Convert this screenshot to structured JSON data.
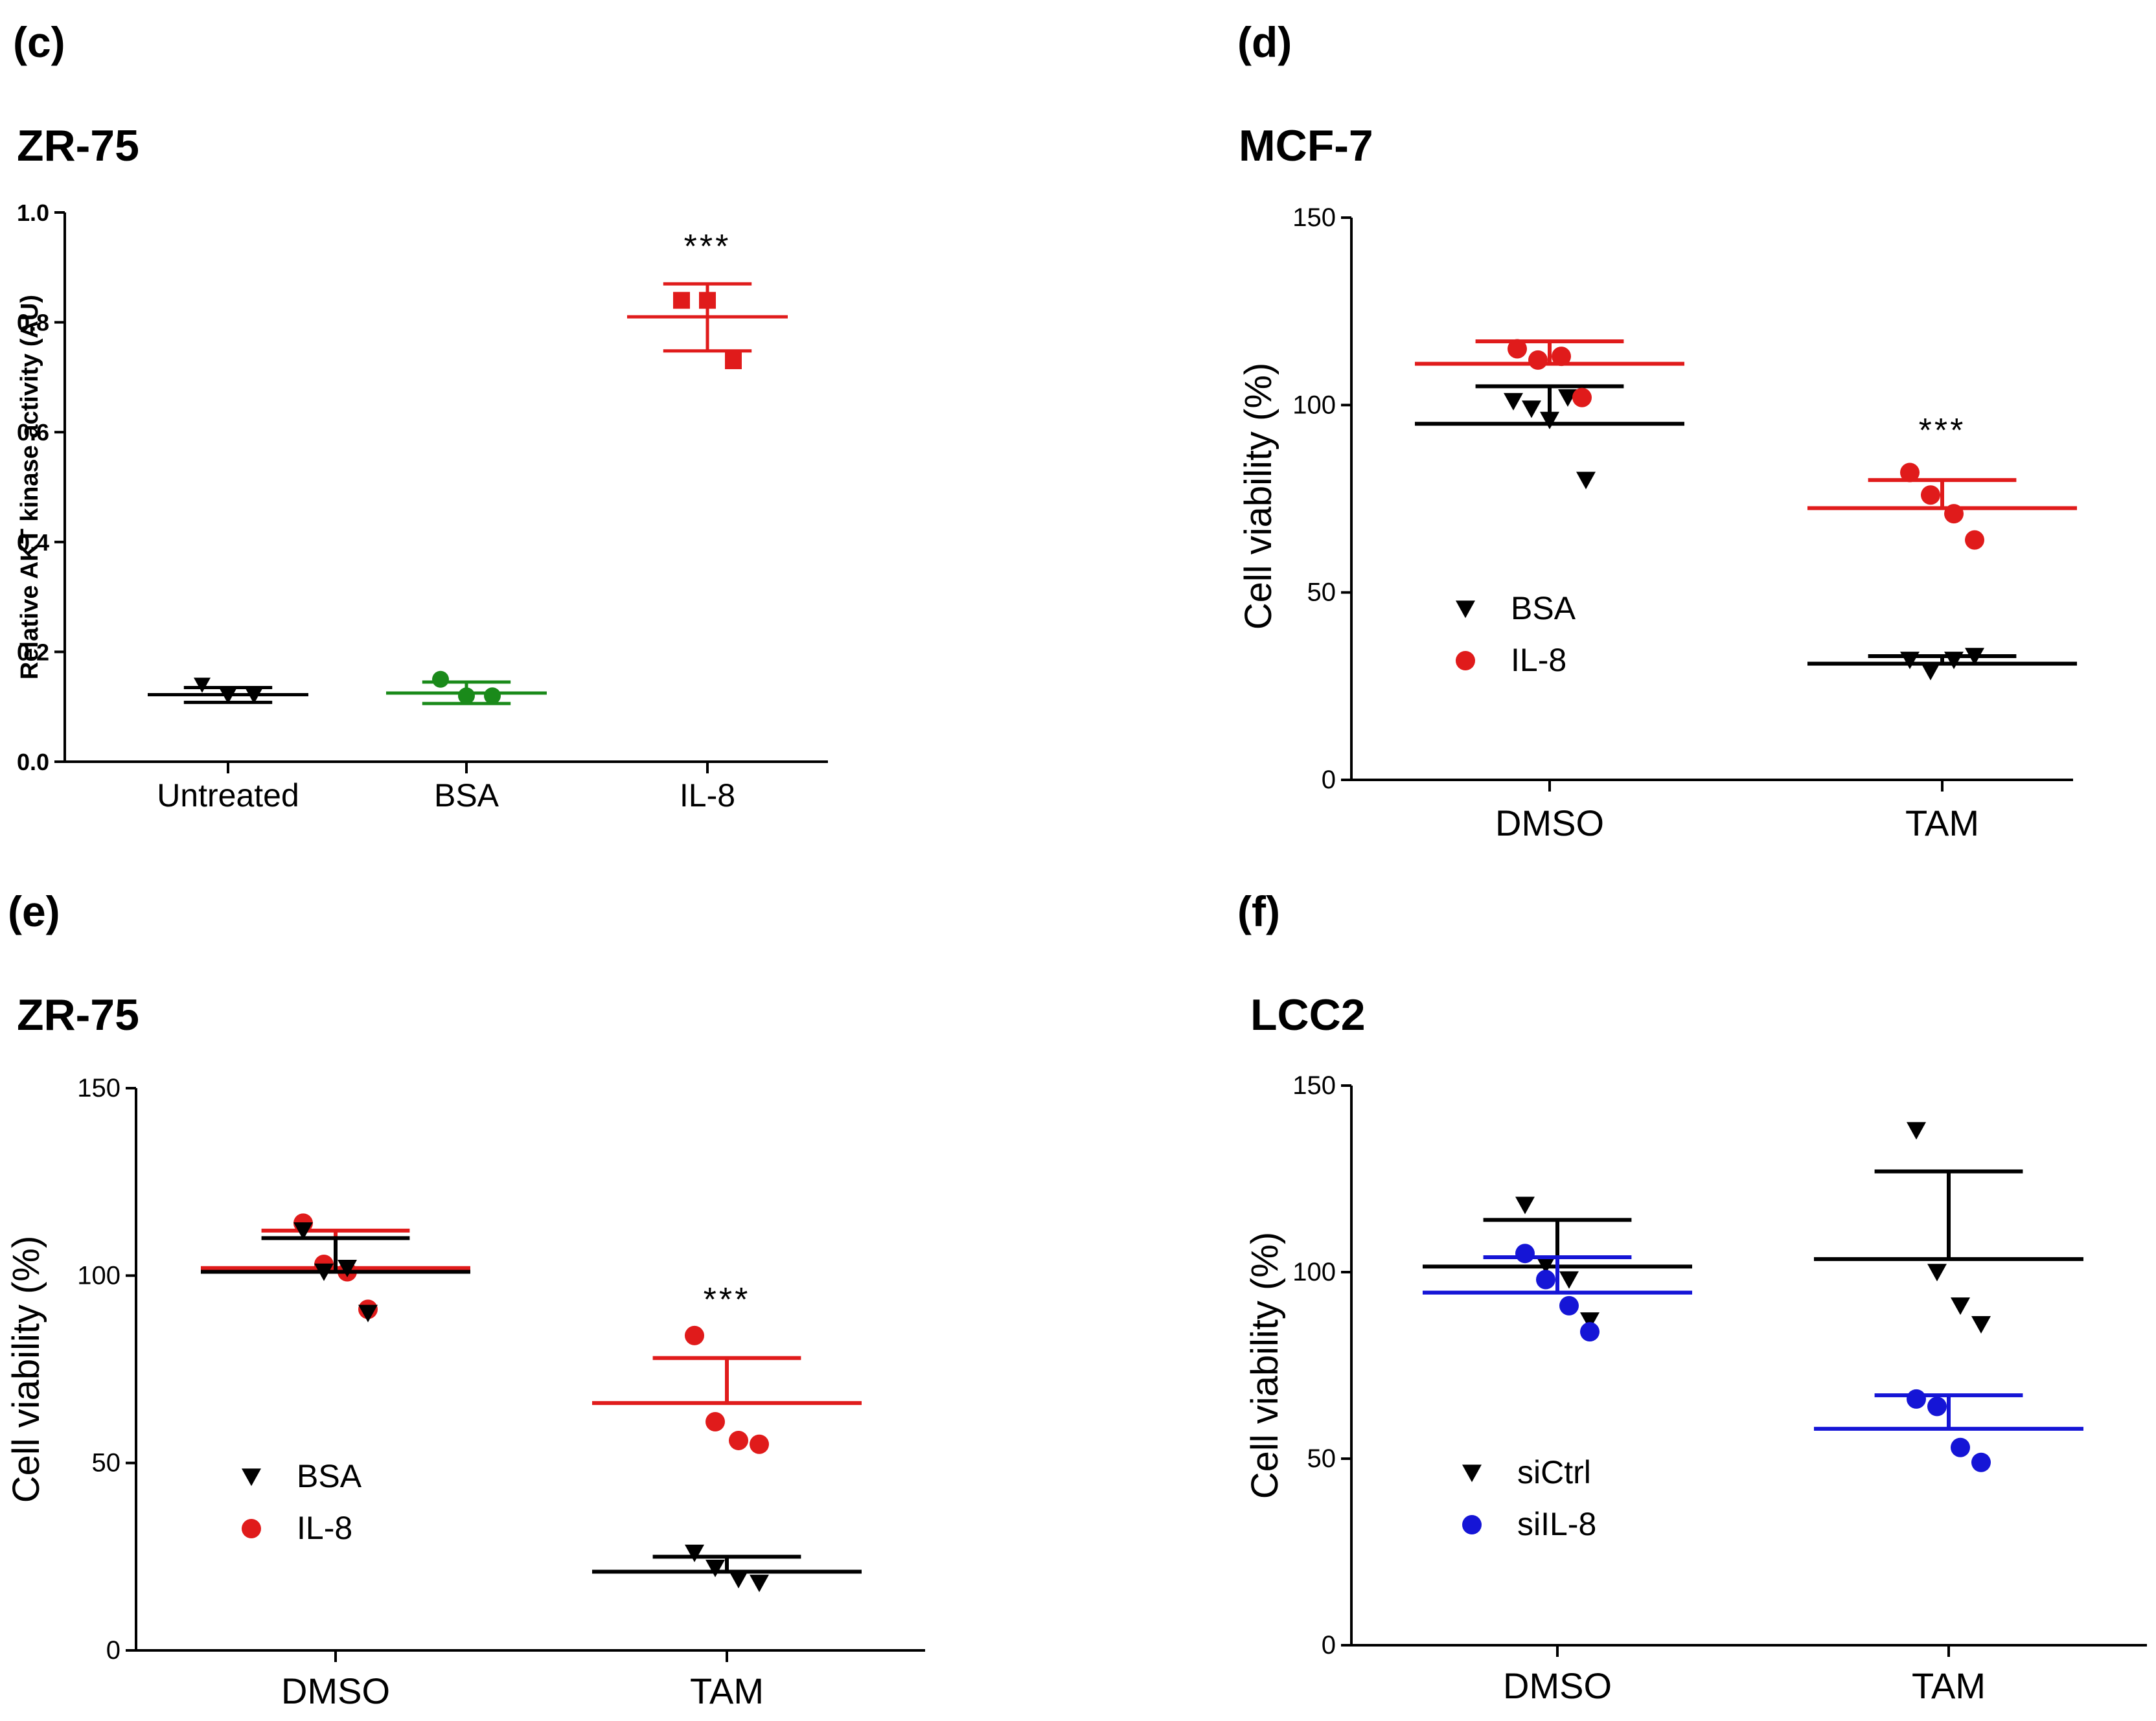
{
  "chart_data": [
    {
      "id": "c",
      "panel_label": "(c)",
      "title": "ZR-75",
      "type": "scatter",
      "ylabel": "Relative AKT kinase activity (AU)",
      "ylim": [
        0,
        1.0
      ],
      "yticks": [
        0.0,
        0.2,
        0.4,
        0.6,
        0.8,
        1.0
      ],
      "ytick_labels": [
        "0.0",
        "0.2",
        "0.4",
        "0.6",
        "0.8",
        "1.0"
      ],
      "categories": [
        "Untreated",
        "BSA",
        "IL-8"
      ],
      "annotation": "***",
      "annotation_category": "IL-8",
      "series": [
        {
          "name": "Untreated",
          "color": "#000000",
          "marker": "triangle-down",
          "category": "Untreated",
          "points": [
            0.14,
            0.12,
            0.12
          ],
          "mean": 0.122,
          "upper": 0.135,
          "lower": 0.108
        },
        {
          "name": "BSA",
          "color": "#1a8a1a",
          "marker": "circle",
          "category": "BSA",
          "points": [
            0.15,
            0.12,
            0.12
          ],
          "mean": 0.125,
          "upper": 0.145,
          "lower": 0.106
        },
        {
          "name": "IL-8",
          "color": "#e01b1b",
          "marker": "square",
          "category": "IL-8",
          "points": [
            0.84,
            0.84,
            0.73
          ],
          "mean": 0.81,
          "upper": 0.87,
          "lower": 0.748
        }
      ]
    },
    {
      "id": "d",
      "panel_label": "(d)",
      "title": "MCF-7",
      "type": "scatter",
      "ylabel": "Cell viability (%)",
      "ylim": [
        0,
        150
      ],
      "yticks": [
        0,
        50,
        100,
        150
      ],
      "ytick_labels": [
        "0",
        "50",
        "100",
        "150"
      ],
      "categories": [
        "DMSO",
        "TAM"
      ],
      "annotation": "***",
      "annotation_category": "TAM",
      "legend": [
        {
          "label": "BSA",
          "marker": "triangle-down",
          "color": "#000000"
        },
        {
          "label": "IL-8",
          "marker": "circle",
          "color": "#e01b1b"
        }
      ],
      "series": [
        {
          "name": "BSA",
          "color": "#000000",
          "marker": "triangle-down",
          "category": "DMSO",
          "points": [
            101,
            99,
            96,
            102,
            80
          ],
          "mean": 95,
          "upper": 105
        },
        {
          "name": "IL-8",
          "color": "#e01b1b",
          "marker": "circle",
          "category": "DMSO",
          "points": [
            115,
            112,
            113,
            102
          ],
          "mean": 111,
          "upper": 117
        },
        {
          "name": "BSA",
          "color": "#000000",
          "marker": "triangle-down",
          "category": "TAM",
          "points": [
            32,
            29,
            32,
            33
          ],
          "mean": 31,
          "upper": 33
        },
        {
          "name": "IL-8",
          "color": "#e01b1b",
          "marker": "circle",
          "category": "TAM",
          "points": [
            82,
            76,
            71,
            64
          ],
          "mean": 72.5,
          "upper": 80
        }
      ]
    },
    {
      "id": "e",
      "panel_label": "(e)",
      "title": "ZR-75",
      "type": "scatter",
      "ylabel": "Cell viability (%)",
      "ylim": [
        0,
        150
      ],
      "yticks": [
        0,
        50,
        100,
        150
      ],
      "ytick_labels": [
        "0",
        "50",
        "100",
        "150"
      ],
      "categories": [
        "DMSO",
        "TAM"
      ],
      "annotation": "***",
      "annotation_category": "TAM",
      "legend": [
        {
          "label": "BSA",
          "marker": "triangle-down",
          "color": "#000000"
        },
        {
          "label": "IL-8",
          "marker": "circle",
          "color": "#e01b1b"
        }
      ],
      "series": [
        {
          "name": "IL-8",
          "color": "#e01b1b",
          "marker": "circle",
          "category": "DMSO",
          "points": [
            114,
            103,
            101,
            91
          ],
          "mean": 102,
          "upper": 112
        },
        {
          "name": "BSA",
          "color": "#000000",
          "marker": "triangle-down",
          "category": "DMSO",
          "points": [
            112,
            101,
            102,
            90
          ],
          "mean": 101,
          "upper": 110
        },
        {
          "name": "IL-8",
          "color": "#e01b1b",
          "marker": "circle",
          "category": "TAM",
          "points": [
            84,
            61,
            56,
            55
          ],
          "mean": 66,
          "upper": 78
        },
        {
          "name": "BSA",
          "color": "#000000",
          "marker": "triangle-down",
          "category": "TAM",
          "points": [
            26,
            22,
            19,
            18
          ],
          "mean": 21,
          "upper": 25
        }
      ]
    },
    {
      "id": "f",
      "panel_label": "(f)",
      "title": "LCC2",
      "type": "scatter",
      "ylabel": "Cell viability (%)",
      "ylim": [
        0,
        150
      ],
      "yticks": [
        0,
        50,
        100,
        150
      ],
      "ytick_labels": [
        "0",
        "50",
        "100",
        "150"
      ],
      "categories": [
        "DMSO",
        "TAM"
      ],
      "legend": [
        {
          "label": "siCtrl",
          "marker": "triangle-down",
          "color": "#000000"
        },
        {
          "label": "siIL-8",
          "marker": "circle",
          "color": "#1515d6"
        }
      ],
      "series": [
        {
          "name": "siCtrl",
          "color": "#000000",
          "marker": "triangle-down",
          "category": "DMSO",
          "points": [
            118,
            102,
            98,
            87
          ],
          "mean": 101.5,
          "upper": 114
        },
        {
          "name": "siIL-8",
          "color": "#1515d6",
          "marker": "circle",
          "category": "DMSO",
          "points": [
            105,
            98,
            91,
            84
          ],
          "mean": 94.5,
          "upper": 104
        },
        {
          "name": "siCtrl",
          "color": "#000000",
          "marker": "triangle-down",
          "category": "TAM",
          "points": [
            138,
            100,
            91,
            86
          ],
          "mean": 103.5,
          "upper": 127
        },
        {
          "name": "siIL-8",
          "color": "#1515d6",
          "marker": "circle",
          "category": "TAM",
          "points": [
            66,
            64,
            53,
            49
          ],
          "mean": 58,
          "upper": 67
        }
      ]
    }
  ]
}
